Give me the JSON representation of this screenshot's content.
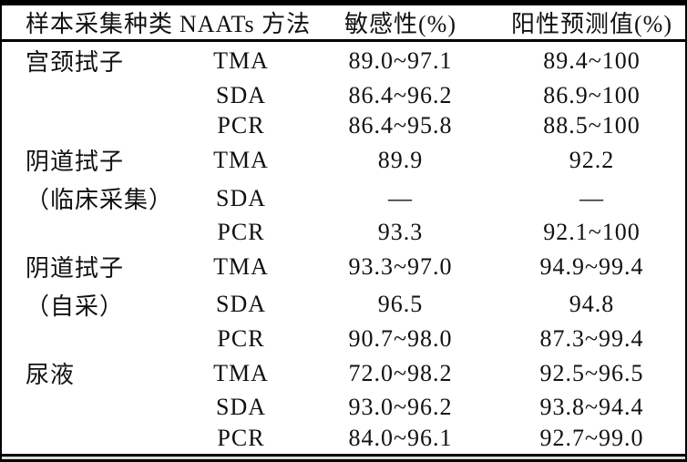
{
  "table": {
    "headers": {
      "sample_type": "样本采集种类",
      "method": "NAATs 方法",
      "sensitivity": "敏感性(%)",
      "ppv": "阳性预测值(%)"
    },
    "rows": [
      {
        "sample": "宫颈拭子",
        "method": "TMA",
        "sensitivity": "89.0~97.1",
        "ppv": "89.4~100"
      },
      {
        "sample": "",
        "method": "SDA",
        "sensitivity": "86.4~96.2",
        "ppv": "86.9~100"
      },
      {
        "sample": "",
        "method": "PCR",
        "sensitivity": "86.4~95.8",
        "ppv": "88.5~100"
      },
      {
        "sample": "阴道拭子",
        "method": "TMA",
        "sensitivity": "89.9",
        "ppv": "92.2"
      },
      {
        "sample": "（临床采集）",
        "method": "SDA",
        "sensitivity": "—",
        "ppv": "—"
      },
      {
        "sample": "",
        "method": "PCR",
        "sensitivity": "93.3",
        "ppv": "92.1~100"
      },
      {
        "sample": "阴道拭子",
        "method": "TMA",
        "sensitivity": "93.3~97.0",
        "ppv": "94.9~99.4"
      },
      {
        "sample": "（自采）",
        "method": "SDA",
        "sensitivity": "96.5",
        "ppv": "94.8"
      },
      {
        "sample": "",
        "method": "PCR",
        "sensitivity": "90.7~98.0",
        "ppv": "87.3~99.4"
      },
      {
        "sample": "尿液",
        "method": "TMA",
        "sensitivity": "72.0~98.2",
        "ppv": "92.5~96.5"
      },
      {
        "sample": "",
        "method": "SDA",
        "sensitivity": "93.0~96.2",
        "ppv": "93.8~94.4"
      },
      {
        "sample": "",
        "method": "PCR",
        "sensitivity": "84.0~96.1",
        "ppv": "92.7~99.0"
      }
    ]
  }
}
